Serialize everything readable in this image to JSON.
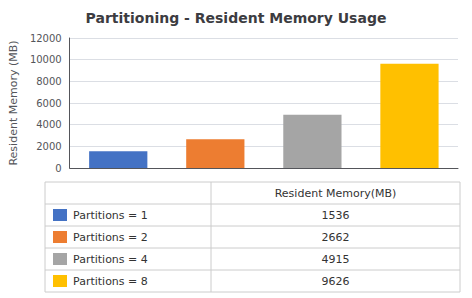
{
  "chart_data": {
    "type": "bar",
    "title": "Partitioning - Resident Memory Usage",
    "ylabel": "Resident Memory (MB)",
    "categories": [
      "Partitions = 1",
      "Partitions = 2",
      "Partitions = 4",
      "Partitions = 8"
    ],
    "series": [
      {
        "name": "Resident Memory(MB)",
        "values": [
          1536,
          2662,
          4915,
          9626
        ]
      }
    ],
    "colors": [
      "#4472c4",
      "#ed7d31",
      "#a5a5a5",
      "#ffc000"
    ],
    "ylim": [
      0,
      12000
    ],
    "yticks": [
      0,
      2000,
      4000,
      6000,
      8000,
      10000,
      12000
    ],
    "grid": true,
    "tick_labels": "y"
  }
}
